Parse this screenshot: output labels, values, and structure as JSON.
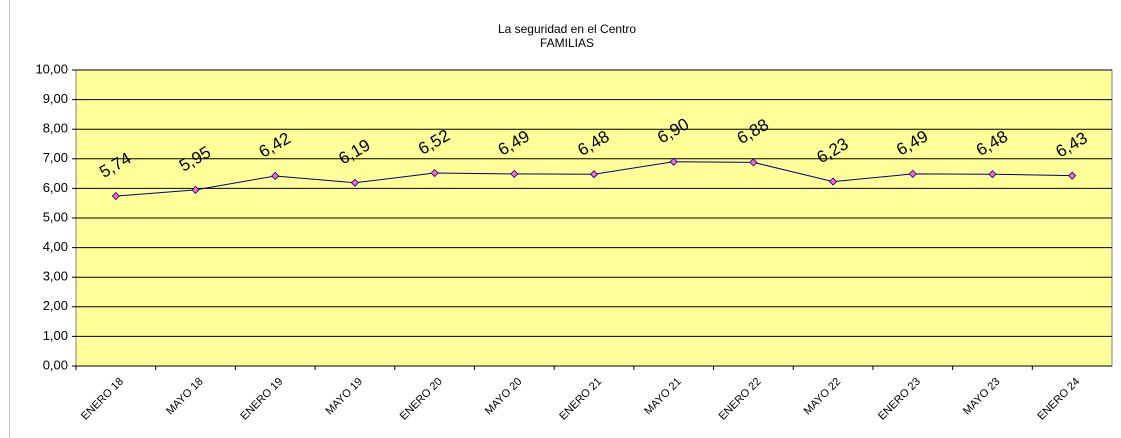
{
  "chart_data": {
    "type": "line",
    "title": "La seguridad en el Centro",
    "subtitle": "FAMILIAS",
    "categories": [
      "ENERO 18",
      "MAYO 18",
      "ENERO 19",
      "MAYO 19",
      "ENERO 20",
      "MAYO 20",
      "ENERO 21",
      "MAYO 21",
      "ENERO 22",
      "MAYO 22",
      "ENERO 23",
      "MAYO 23",
      "ENERO 24"
    ],
    "series": [
      {
        "color": "#000080",
        "marker_color": "#ff66cc",
        "values": [
          5.74,
          5.95,
          6.42,
          6.19,
          6.52,
          6.49,
          6.48,
          6.9,
          6.88,
          6.23,
          6.49,
          6.48,
          6.43
        ],
        "value_labels": [
          "5,74",
          "5,95",
          "6,42",
          "6,19",
          "6,52",
          "6,49",
          "6,48",
          "6,90",
          "6,88",
          "6,23",
          "6,49",
          "6,48",
          "6,43"
        ]
      }
    ],
    "ylim": [
      0,
      10
    ],
    "yticks": [
      {
        "value": 0,
        "label": "0,00"
      },
      {
        "value": 1,
        "label": "1,00"
      },
      {
        "value": 2,
        "label": "2,00"
      },
      {
        "value": 3,
        "label": "3,00"
      },
      {
        "value": 4,
        "label": "4,00"
      },
      {
        "value": 5,
        "label": "5,00"
      },
      {
        "value": 6,
        "label": "6,00"
      },
      {
        "value": 7,
        "label": "7,00"
      },
      {
        "value": 8,
        "label": "8,00"
      },
      {
        "value": 9,
        "label": "9,00"
      },
      {
        "value": 10,
        "label": "10,00"
      }
    ],
    "grid": true,
    "plot_background": "#ffff99"
  }
}
